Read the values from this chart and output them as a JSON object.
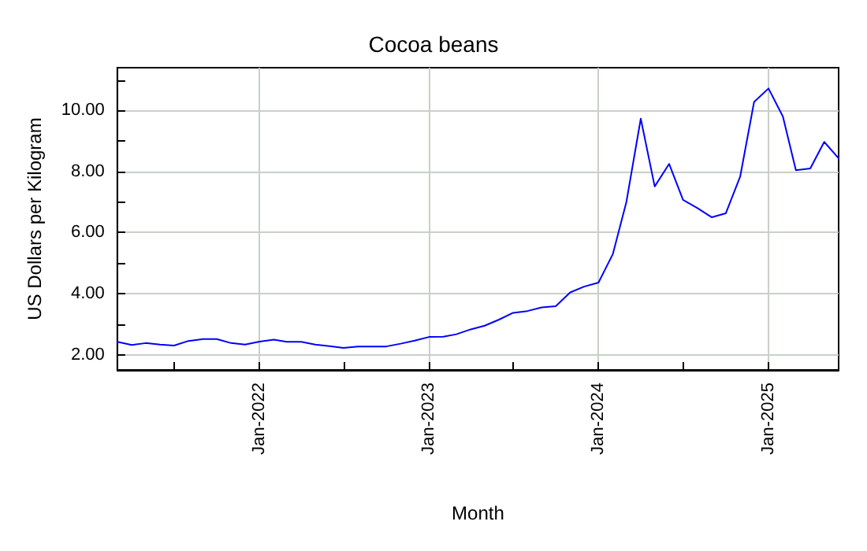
{
  "chart_data": {
    "type": "line",
    "title": "Cocoa beans",
    "xlabel": "Month",
    "ylabel": "US Dollars per Kilogram",
    "x": [
      "2021-03",
      "2021-04",
      "2021-05",
      "2021-06",
      "2021-07",
      "2021-08",
      "2021-09",
      "2021-10",
      "2021-11",
      "2021-12",
      "2022-01",
      "2022-02",
      "2022-03",
      "2022-04",
      "2022-05",
      "2022-06",
      "2022-07",
      "2022-08",
      "2022-09",
      "2022-10",
      "2022-11",
      "2022-12",
      "2023-01",
      "2023-02",
      "2023-03",
      "2023-04",
      "2023-05",
      "2023-06",
      "2023-07",
      "2023-08",
      "2023-09",
      "2023-10",
      "2023-11",
      "2023-12",
      "2024-01",
      "2024-02",
      "2024-03",
      "2024-04",
      "2024-05",
      "2024-06",
      "2024-07",
      "2024-08",
      "2024-09",
      "2024-10",
      "2024-11",
      "2024-12",
      "2025-01",
      "2025-02",
      "2025-03",
      "2025-04",
      "2025-05",
      "2025-06"
    ],
    "series": [
      {
        "color": "#0000ff",
        "values": [
          2.42,
          2.32,
          2.38,
          2.33,
          2.3,
          2.45,
          2.51,
          2.51,
          2.38,
          2.33,
          2.43,
          2.49,
          2.42,
          2.42,
          2.33,
          2.28,
          2.22,
          2.27,
          2.27,
          2.27,
          2.36,
          2.46,
          2.58,
          2.59,
          2.67,
          2.83,
          2.95,
          3.15,
          3.37,
          3.43,
          3.55,
          3.59,
          4.04,
          4.23,
          4.36,
          5.3,
          7.0,
          9.73,
          7.51,
          8.25,
          7.07,
          6.8,
          6.5,
          6.63,
          7.83,
          10.28,
          10.72,
          9.8,
          8.04,
          8.1,
          8.97,
          8.43
        ]
      }
    ],
    "xlim": [
      "2021-03",
      "2025-06"
    ],
    "xticks": [
      {
        "value": "2021-07",
        "label": null
      },
      {
        "value": "2022-01",
        "label": "Jan-2022"
      },
      {
        "value": "2022-07",
        "label": null
      },
      {
        "value": "2023-01",
        "label": "Jan-2023"
      },
      {
        "value": "2023-07",
        "label": null
      },
      {
        "value": "2024-01",
        "label": "Jan-2024"
      },
      {
        "value": "2024-07",
        "label": null
      },
      {
        "value": "2025-01",
        "label": "Jan-2025"
      }
    ],
    "ylim": [
      1.5,
      11.4
    ],
    "yticks": [
      {
        "value": 2,
        "label": "2.00"
      },
      {
        "value": 3,
        "label": null
      },
      {
        "value": 4,
        "label": "4.00"
      },
      {
        "value": 5,
        "label": null
      },
      {
        "value": 6,
        "label": "6.00"
      },
      {
        "value": 7,
        "label": null
      },
      {
        "value": 8,
        "label": "8.00"
      },
      {
        "value": 9,
        "label": null
      },
      {
        "value": 10,
        "label": "10.00"
      },
      {
        "value": 11,
        "label": null
      }
    ],
    "grid": true,
    "marker": "none",
    "line_style": "solid"
  }
}
